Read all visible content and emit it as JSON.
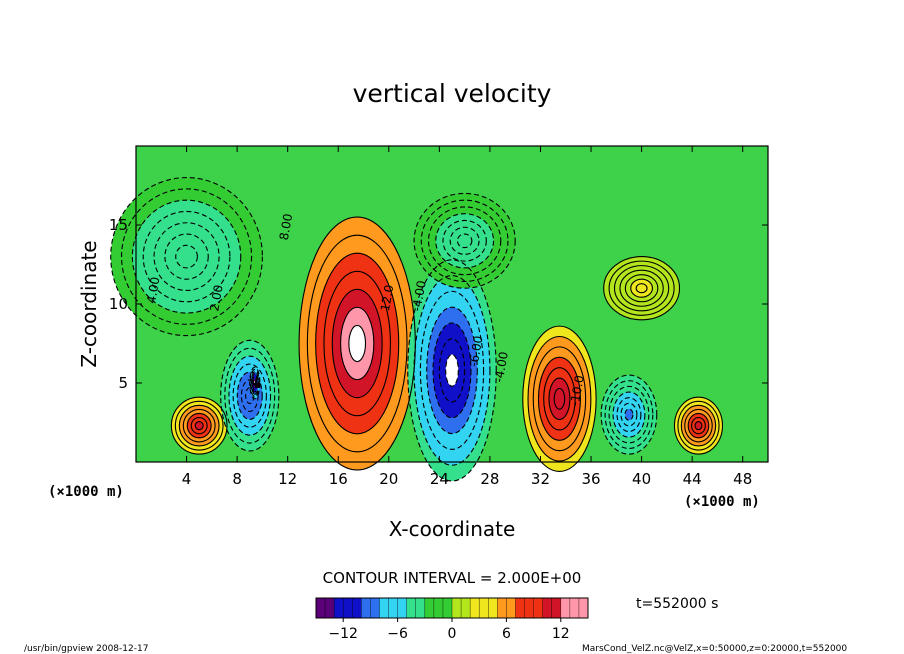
{
  "chart_data": {
    "type": "heatmap",
    "title": "vertical velocity",
    "xlabel": "X-coordinate",
    "ylabel": "Z-coordinate",
    "x_unit": "(×1000 m)",
    "y_unit": "(×1000 m)",
    "xlim": [
      0,
      50
    ],
    "ylim": [
      0,
      20
    ],
    "x_ticks": [
      "4",
      "8",
      "12",
      "16",
      "20",
      "24",
      "28",
      "32",
      "36",
      "40",
      "44",
      "48"
    ],
    "y_ticks": [
      "5",
      "10",
      "15"
    ],
    "contour_interval": "CONTOUR INTERVAL = 2.000E+00",
    "time_label": "t=552000 s",
    "colorbar": {
      "range": [
        -15,
        15
      ],
      "ticks": [
        "−12",
        "−6",
        "0",
        "6",
        "12"
      ],
      "colors": [
        "#5a0078",
        "#1010c8",
        "#2e6ff0",
        "#33d4f2",
        "#34e08c",
        "#33cc33",
        "#b4e61e",
        "#f0e61e",
        "#ff9a1e",
        "#f03214",
        "#d21428",
        "#ff96aa"
      ]
    },
    "cells": [
      {
        "x": 5,
        "z": 2.3,
        "rx": 2.2,
        "rz": 1.8,
        "v": 10
      },
      {
        "x": 9,
        "z": 4.2,
        "rx": 2.3,
        "rz": 3.5,
        "v": -10
      },
      {
        "x": 9.4,
        "z": 5,
        "rx": 0.4,
        "rz": 1,
        "v": -15
      },
      {
        "x": 17.5,
        "z": 7.5,
        "rx": 4.6,
        "rz": 8,
        "v": 14
      },
      {
        "x": 25,
        "z": 5.8,
        "rx": 3.5,
        "rz": 7,
        "v": -13
      },
      {
        "x": 33.5,
        "z": 4,
        "rx": 2.9,
        "rz": 4.6,
        "v": 12
      },
      {
        "x": 39,
        "z": 3,
        "rx": 2.2,
        "rz": 2.5,
        "v": -8
      },
      {
        "x": 44.5,
        "z": 2.3,
        "rx": 1.9,
        "rz": 1.8,
        "v": 10
      },
      {
        "x": 4,
        "z": 13,
        "rx": 6,
        "rz": 5,
        "v": -5
      },
      {
        "x": 26,
        "z": 14,
        "rx": 4,
        "rz": 3,
        "v": -4
      },
      {
        "x": 40,
        "z": 11,
        "rx": 3,
        "rz": 2,
        "v": 3
      }
    ],
    "contour_labels": [
      "4.00",
      "2.00",
      "8.00",
      "12.0",
      "-4.00",
      "-6.00",
      "-10.0",
      "-4.00"
    ]
  },
  "footer": {
    "left": "/usr/bin/gpview   2008-12-17",
    "right": "MarsCond_VelZ.nc@VelZ,x=0:50000,z=0:20000,t=552000"
  }
}
